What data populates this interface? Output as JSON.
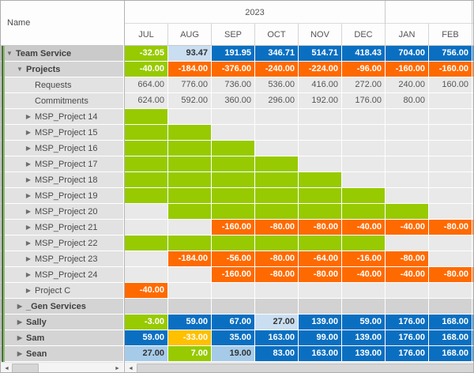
{
  "name_header": "Name",
  "header": {
    "year_groups": [
      {
        "label": "2023",
        "months": 6
      },
      {
        "label": "",
        "months": 2
      }
    ],
    "months": [
      "JUL",
      "AUG",
      "SEP",
      "OCT",
      "NOV",
      "DEC",
      "JAN",
      "FEB"
    ]
  },
  "icons": {
    "expanded": "▼",
    "collapsed": "▶",
    "scroll_left": "◄",
    "scroll_right": "►"
  },
  "colors": {
    "green": "#97CA00",
    "orange": "#FF6A00",
    "blue": "#0B6FC1",
    "lightblue": "#A5CBE9",
    "paleblue": "#CADEF1",
    "yellow": "#FFC000",
    "empty_cell": "#E9E9E9",
    "group_row": "#D2D2D2",
    "name_group0": "#CACACA",
    "name_group1": "#D4D4D4",
    "name_child": "#E2E2E2",
    "tree_edge": "#47703E"
  },
  "rows": [
    {
      "name": "Team Service",
      "level": 0,
      "arrow": "expanded",
      "bold": true,
      "bg": "group0",
      "sliver": "blue",
      "cells": [
        {
          "v": "-32.05",
          "c": "green"
        },
        {
          "v": "93.47",
          "c": "paleblue"
        },
        {
          "v": "191.95",
          "c": "blue"
        },
        {
          "v": "346.71",
          "c": "blue"
        },
        {
          "v": "514.71",
          "c": "blue"
        },
        {
          "v": "418.43",
          "c": "blue"
        },
        {
          "v": "704.00",
          "c": "blue"
        },
        {
          "v": "756.00",
          "c": "blue"
        }
      ]
    },
    {
      "name": "Projects",
      "level": 1,
      "arrow": "expanded",
      "bold": true,
      "bg": "group1",
      "sliver": "orange",
      "cells": [
        {
          "v": "-40.00",
          "c": "green"
        },
        {
          "v": "-184.00",
          "c": "orange"
        },
        {
          "v": "-376.00",
          "c": "orange"
        },
        {
          "v": "-240.00",
          "c": "orange"
        },
        {
          "v": "-224.00",
          "c": "orange"
        },
        {
          "v": "-96.00",
          "c": "orange"
        },
        {
          "v": "-160.00",
          "c": "orange"
        },
        {
          "v": "-160.00",
          "c": "orange"
        }
      ]
    },
    {
      "name": "Requests",
      "level": 2,
      "arrow": "none",
      "bold": false,
      "bg": "child",
      "sliver": "empty",
      "cells": [
        {
          "v": "664.00",
          "c": "empty"
        },
        {
          "v": "776.00",
          "c": "empty"
        },
        {
          "v": "736.00",
          "c": "empty"
        },
        {
          "v": "536.00",
          "c": "empty"
        },
        {
          "v": "416.00",
          "c": "empty"
        },
        {
          "v": "272.00",
          "c": "empty"
        },
        {
          "v": "240.00",
          "c": "empty"
        },
        {
          "v": "160.00",
          "c": "empty"
        }
      ]
    },
    {
      "name": "Commitments",
      "level": 2,
      "arrow": "none",
      "bold": false,
      "bg": "child",
      "sliver": "empty",
      "cells": [
        {
          "v": "624.00",
          "c": "empty"
        },
        {
          "v": "592.00",
          "c": "empty"
        },
        {
          "v": "360.00",
          "c": "empty"
        },
        {
          "v": "296.00",
          "c": "empty"
        },
        {
          "v": "192.00",
          "c": "empty"
        },
        {
          "v": "176.00",
          "c": "empty"
        },
        {
          "v": "80.00",
          "c": "empty"
        },
        {
          "v": "",
          "c": "empty"
        }
      ]
    },
    {
      "name": "MSP_Project 14",
      "level": 2,
      "arrow": "collapsed",
      "bold": false,
      "bg": "child",
      "sliver": "empty",
      "cells": [
        {
          "v": "",
          "c": "green"
        },
        {
          "v": "",
          "c": "empty"
        },
        {
          "v": "",
          "c": "empty"
        },
        {
          "v": "",
          "c": "empty"
        },
        {
          "v": "",
          "c": "empty"
        },
        {
          "v": "",
          "c": "empty"
        },
        {
          "v": "",
          "c": "empty"
        },
        {
          "v": "",
          "c": "empty"
        }
      ]
    },
    {
      "name": "MSP_Project 15",
      "level": 2,
      "arrow": "collapsed",
      "bold": false,
      "bg": "child",
      "sliver": "empty",
      "cells": [
        {
          "v": "",
          "c": "green"
        },
        {
          "v": "",
          "c": "green"
        },
        {
          "v": "",
          "c": "empty"
        },
        {
          "v": "",
          "c": "empty"
        },
        {
          "v": "",
          "c": "empty"
        },
        {
          "v": "",
          "c": "empty"
        },
        {
          "v": "",
          "c": "empty"
        },
        {
          "v": "",
          "c": "empty"
        }
      ]
    },
    {
      "name": "MSP_Project 16",
      "level": 2,
      "arrow": "collapsed",
      "bold": false,
      "bg": "child",
      "sliver": "empty",
      "cells": [
        {
          "v": "",
          "c": "green"
        },
        {
          "v": "",
          "c": "green"
        },
        {
          "v": "",
          "c": "green"
        },
        {
          "v": "",
          "c": "empty"
        },
        {
          "v": "",
          "c": "empty"
        },
        {
          "v": "",
          "c": "empty"
        },
        {
          "v": "",
          "c": "empty"
        },
        {
          "v": "",
          "c": "empty"
        }
      ]
    },
    {
      "name": "MSP_Project 17",
      "level": 2,
      "arrow": "collapsed",
      "bold": false,
      "bg": "child",
      "sliver": "empty",
      "cells": [
        {
          "v": "",
          "c": "green"
        },
        {
          "v": "",
          "c": "green"
        },
        {
          "v": "",
          "c": "green"
        },
        {
          "v": "",
          "c": "green"
        },
        {
          "v": "",
          "c": "empty"
        },
        {
          "v": "",
          "c": "empty"
        },
        {
          "v": "",
          "c": "empty"
        },
        {
          "v": "",
          "c": "empty"
        }
      ]
    },
    {
      "name": "MSP_Project 18",
      "level": 2,
      "arrow": "collapsed",
      "bold": false,
      "bg": "child",
      "sliver": "empty",
      "cells": [
        {
          "v": "",
          "c": "green"
        },
        {
          "v": "",
          "c": "green"
        },
        {
          "v": "",
          "c": "green"
        },
        {
          "v": "",
          "c": "green"
        },
        {
          "v": "",
          "c": "green"
        },
        {
          "v": "",
          "c": "empty"
        },
        {
          "v": "",
          "c": "empty"
        },
        {
          "v": "",
          "c": "empty"
        }
      ]
    },
    {
      "name": "MSP_Project 19",
      "level": 2,
      "arrow": "collapsed",
      "bold": false,
      "bg": "child",
      "sliver": "empty",
      "cells": [
        {
          "v": "",
          "c": "green"
        },
        {
          "v": "",
          "c": "green"
        },
        {
          "v": "",
          "c": "green"
        },
        {
          "v": "",
          "c": "green"
        },
        {
          "v": "",
          "c": "green"
        },
        {
          "v": "",
          "c": "green"
        },
        {
          "v": "",
          "c": "empty"
        },
        {
          "v": "",
          "c": "empty"
        }
      ]
    },
    {
      "name": "MSP_Project 20",
      "level": 2,
      "arrow": "collapsed",
      "bold": false,
      "bg": "child",
      "sliver": "empty",
      "cells": [
        {
          "v": "",
          "c": "empty"
        },
        {
          "v": "",
          "c": "green"
        },
        {
          "v": "",
          "c": "green"
        },
        {
          "v": "",
          "c": "green"
        },
        {
          "v": "",
          "c": "green"
        },
        {
          "v": "",
          "c": "green"
        },
        {
          "v": "",
          "c": "green"
        },
        {
          "v": "",
          "c": "empty"
        }
      ]
    },
    {
      "name": "MSP_Project 21",
      "level": 2,
      "arrow": "collapsed",
      "bold": false,
      "bg": "child",
      "sliver": "orange",
      "cells": [
        {
          "v": "",
          "c": "empty"
        },
        {
          "v": "",
          "c": "empty"
        },
        {
          "v": "-160.00",
          "c": "orange"
        },
        {
          "v": "-80.00",
          "c": "orange"
        },
        {
          "v": "-80.00",
          "c": "orange"
        },
        {
          "v": "-40.00",
          "c": "orange"
        },
        {
          "v": "-40.00",
          "c": "orange"
        },
        {
          "v": "-80.00",
          "c": "orange"
        }
      ]
    },
    {
      "name": "MSP_Project 22",
      "level": 2,
      "arrow": "collapsed",
      "bold": false,
      "bg": "child",
      "sliver": "empty",
      "cells": [
        {
          "v": "",
          "c": "green"
        },
        {
          "v": "",
          "c": "green"
        },
        {
          "v": "",
          "c": "green"
        },
        {
          "v": "",
          "c": "green"
        },
        {
          "v": "",
          "c": "green"
        },
        {
          "v": "",
          "c": "green"
        },
        {
          "v": "",
          "c": "empty"
        },
        {
          "v": "",
          "c": "empty"
        }
      ]
    },
    {
      "name": "MSP_Project 23",
      "level": 2,
      "arrow": "collapsed",
      "bold": false,
      "bg": "child",
      "sliver": "empty",
      "cells": [
        {
          "v": "",
          "c": "empty"
        },
        {
          "v": "-184.00",
          "c": "orange"
        },
        {
          "v": "-56.00",
          "c": "orange"
        },
        {
          "v": "-80.00",
          "c": "orange"
        },
        {
          "v": "-64.00",
          "c": "orange"
        },
        {
          "v": "-16.00",
          "c": "orange"
        },
        {
          "v": "-80.00",
          "c": "orange"
        },
        {
          "v": "",
          "c": "empty"
        }
      ]
    },
    {
      "name": "MSP_Project 24",
      "level": 2,
      "arrow": "collapsed",
      "bold": false,
      "bg": "child",
      "sliver": "orange",
      "cells": [
        {
          "v": "",
          "c": "empty"
        },
        {
          "v": "",
          "c": "empty"
        },
        {
          "v": "-160.00",
          "c": "orange"
        },
        {
          "v": "-80.00",
          "c": "orange"
        },
        {
          "v": "-80.00",
          "c": "orange"
        },
        {
          "v": "-40.00",
          "c": "orange"
        },
        {
          "v": "-40.00",
          "c": "orange"
        },
        {
          "v": "-80.00",
          "c": "orange"
        }
      ]
    },
    {
      "name": "Project C",
      "level": 2,
      "arrow": "collapsed",
      "bold": false,
      "bg": "child",
      "sliver": "empty",
      "cells": [
        {
          "v": "-40.00",
          "c": "orange"
        },
        {
          "v": "",
          "c": "empty"
        },
        {
          "v": "",
          "c": "empty"
        },
        {
          "v": "",
          "c": "empty"
        },
        {
          "v": "",
          "c": "empty"
        },
        {
          "v": "",
          "c": "empty"
        },
        {
          "v": "",
          "c": "empty"
        },
        {
          "v": "",
          "c": "empty"
        }
      ]
    },
    {
      "name": "_Gen Services",
      "level": 1,
      "arrow": "collapsed",
      "bold": true,
      "bg": "group1",
      "sliver": "grayrow",
      "cells": [
        {
          "v": "",
          "c": "grayrow"
        },
        {
          "v": "",
          "c": "grayrow"
        },
        {
          "v": "",
          "c": "grayrow"
        },
        {
          "v": "",
          "c": "grayrow"
        },
        {
          "v": "",
          "c": "grayrow"
        },
        {
          "v": "",
          "c": "grayrow"
        },
        {
          "v": "",
          "c": "grayrow"
        },
        {
          "v": "",
          "c": "grayrow"
        }
      ]
    },
    {
      "name": "Sally",
      "level": 1,
      "arrow": "collapsed",
      "bold": true,
      "bg": "group1",
      "sliver": "blue",
      "cells": [
        {
          "v": "-3.00",
          "c": "green"
        },
        {
          "v": "59.00",
          "c": "blue"
        },
        {
          "v": "67.00",
          "c": "blue"
        },
        {
          "v": "27.00",
          "c": "paleblue"
        },
        {
          "v": "139.00",
          "c": "blue"
        },
        {
          "v": "59.00",
          "c": "blue"
        },
        {
          "v": "176.00",
          "c": "blue"
        },
        {
          "v": "168.00",
          "c": "blue"
        }
      ]
    },
    {
      "name": "Sam",
      "level": 1,
      "arrow": "collapsed",
      "bold": true,
      "bg": "group1",
      "sliver": "blue",
      "cells": [
        {
          "v": "59.00",
          "c": "blue"
        },
        {
          "v": "-33.00",
          "c": "yellow"
        },
        {
          "v": "35.00",
          "c": "blue"
        },
        {
          "v": "163.00",
          "c": "blue"
        },
        {
          "v": "99.00",
          "c": "blue"
        },
        {
          "v": "139.00",
          "c": "blue"
        },
        {
          "v": "176.00",
          "c": "blue"
        },
        {
          "v": "168.00",
          "c": "blue"
        }
      ]
    },
    {
      "name": "Sean",
      "level": 1,
      "arrow": "collapsed",
      "bold": true,
      "bg": "group1",
      "sliver": "blue",
      "cells": [
        {
          "v": "27.00",
          "c": "lightblue"
        },
        {
          "v": "7.00",
          "c": "green"
        },
        {
          "v": "19.00",
          "c": "lightblue"
        },
        {
          "v": "83.00",
          "c": "blue"
        },
        {
          "v": "163.00",
          "c": "blue"
        },
        {
          "v": "139.00",
          "c": "blue"
        },
        {
          "v": "176.00",
          "c": "blue"
        },
        {
          "v": "168.00",
          "c": "blue"
        }
      ]
    }
  ]
}
